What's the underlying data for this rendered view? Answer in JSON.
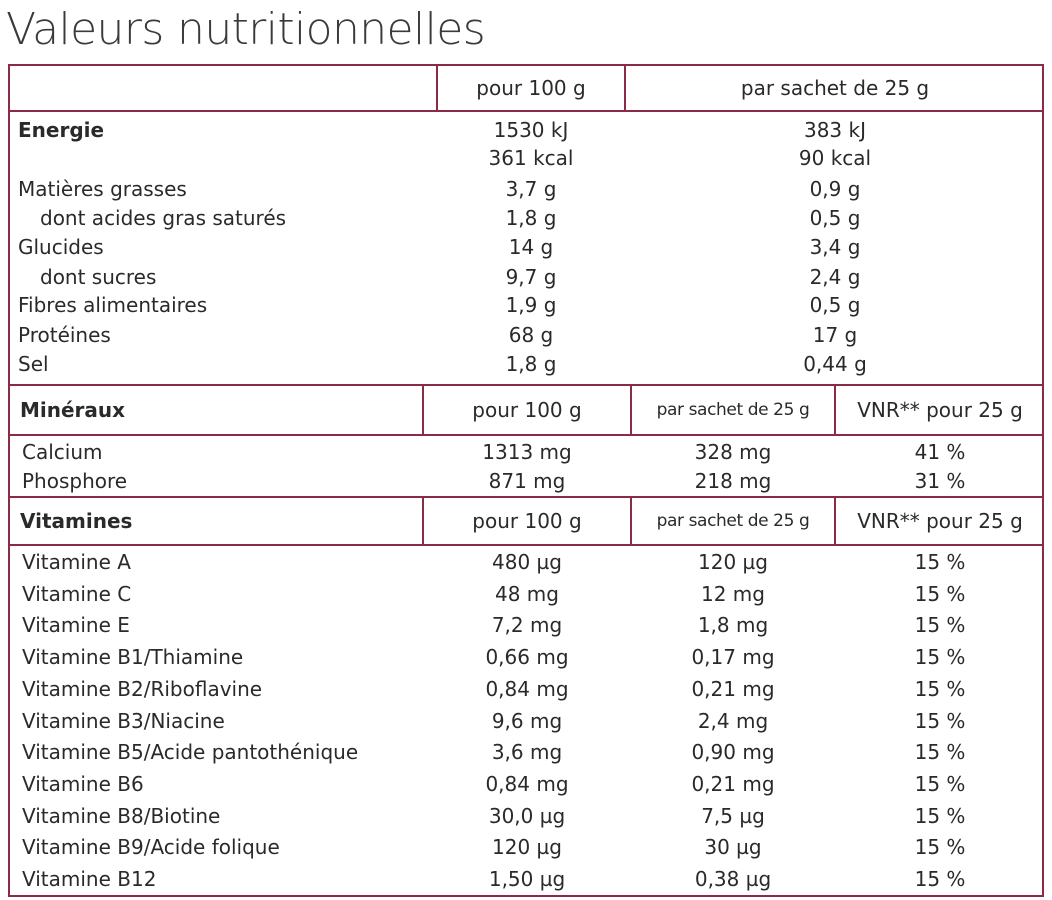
{
  "title": "Valeurs nutritionnelles",
  "colors": {
    "border": "#8d2a45",
    "text": "#2a2a2a"
  },
  "main_table": {
    "headers": [
      "",
      "pour 100 g",
      "par sachet de 25 g"
    ],
    "energy": {
      "label": "Energie",
      "per100": [
        "1530 kJ",
        "361 kcal"
      ],
      "per25": [
        "383 kJ",
        "90 kcal"
      ]
    },
    "rows": [
      {
        "label": "Matières grasses",
        "per100": "3,7 g",
        "per25": "0,9 g",
        "indent": false
      },
      {
        "label": "dont acides gras saturés",
        "per100": "1,8 g",
        "per25": "0,5 g",
        "indent": true
      },
      {
        "label": "Glucides",
        "per100": "14 g",
        "per25": "3,4 g",
        "indent": false
      },
      {
        "label": "dont sucres",
        "per100": "9,7 g",
        "per25": "2,4 g",
        "indent": true
      },
      {
        "label": "Fibres alimentaires",
        "per100": "1,9 g",
        "per25": "0,5 g",
        "indent": false
      },
      {
        "label": "Protéines",
        "per100": "68 g",
        "per25": "17 g",
        "indent": false
      },
      {
        "label": "Sel",
        "per100": "1,8 g",
        "per25": "0,44 g",
        "indent": false
      }
    ]
  },
  "minerals": {
    "headers": [
      "Minéraux",
      "pour 100 g",
      "par sachet de 25 g",
      "VNR** pour 25 g"
    ],
    "rows": [
      {
        "label": "Calcium",
        "per100": "1313 mg",
        "per25": "328 mg",
        "vnr": "41 %"
      },
      {
        "label": "Phosphore",
        "per100": "871 mg",
        "per25": "218 mg",
        "vnr": "31 %"
      }
    ]
  },
  "vitamins": {
    "headers": [
      "Vitamines",
      "pour 100 g",
      "par sachet de 25 g",
      "VNR** pour 25 g"
    ],
    "rows": [
      {
        "label": "Vitamine A",
        "per100": "480 µg",
        "per25": "120 µg",
        "vnr": "15 %"
      },
      {
        "label": "Vitamine C",
        "per100": "48 mg",
        "per25": "12 mg",
        "vnr": "15 %"
      },
      {
        "label": "Vitamine E",
        "per100": "7,2 mg",
        "per25": "1,8 mg",
        "vnr": "15 %"
      },
      {
        "label": "Vitamine B1/Thiamine",
        "per100": "0,66 mg",
        "per25": "0,17 mg",
        "vnr": "15 %"
      },
      {
        "label": "Vitamine B2/Riboflavine",
        "per100": "0,84 mg",
        "per25": "0,21 mg",
        "vnr": "15 %"
      },
      {
        "label": "Vitamine B3/Niacine",
        "per100": "9,6 mg",
        "per25": "2,4 mg",
        "vnr": "15 %"
      },
      {
        "label": "Vitamine B5/Acide pantothénique",
        "per100": "3,6 mg",
        "per25": "0,90 mg",
        "vnr": "15 %"
      },
      {
        "label": "Vitamine B6",
        "per100": "0,84 mg",
        "per25": "0,21 mg",
        "vnr": "15 %"
      },
      {
        "label": "Vitamine B8/Biotine",
        "per100": "30,0 µg",
        "per25": "7,5 µg",
        "vnr": "15 %"
      },
      {
        "label": "Vitamine B9/Acide folique",
        "per100": "120 µg",
        "per25": "30 µg",
        "vnr": "15 %"
      },
      {
        "label": "Vitamine B12",
        "per100": "1,50 µg",
        "per25": "0,38 µg",
        "vnr": "15 %"
      }
    ]
  }
}
